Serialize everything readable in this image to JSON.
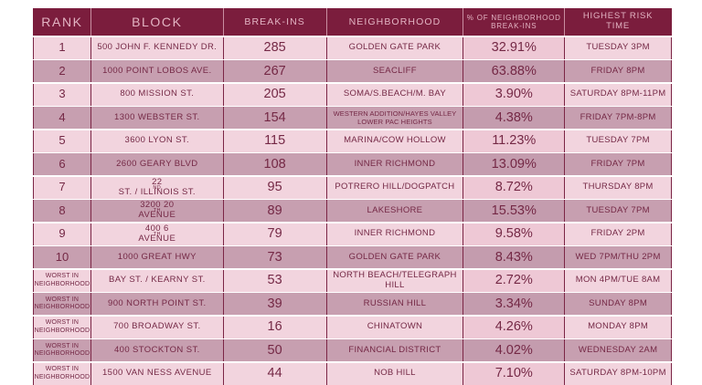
{
  "chart_data": {
    "type": "table",
    "title": "",
    "columns": [
      {
        "id": "rank",
        "label": "RANK"
      },
      {
        "id": "block",
        "label": "BLOCK"
      },
      {
        "id": "breakins",
        "label": "BREAK-INS"
      },
      {
        "id": "neighborhood",
        "label": "NEIGHBORHOOD"
      },
      {
        "id": "pct",
        "label": "% OF NEIGHBORHOOD\nBREAK-INS"
      },
      {
        "id": "time",
        "label": "HIGHEST RISK\nTIME"
      }
    ],
    "rows": [
      {
        "rank": "1",
        "block": "500 JOHN F. KENNEDY DR.",
        "breakins": "285",
        "neighborhood": "GOLDEN GATE PARK",
        "pct": "32.91%",
        "time": "TUESDAY 3PM"
      },
      {
        "rank": "2",
        "block": "1000 POINT LOBOS AVE.",
        "breakins": "267",
        "neighborhood": "SEACLIFF",
        "pct": "63.88%",
        "time": "FRIDAY 8PM"
      },
      {
        "rank": "3",
        "block": "800 MISSION ST.",
        "breakins": "205",
        "neighborhood": "SOMA/S.BEACH/M. BAY",
        "pct": "3.90%",
        "time": "SATURDAY 8PM-11PM"
      },
      {
        "rank": "4",
        "block": "1300 WEBSTER ST.",
        "breakins": "154",
        "neighborhood": "WESTERN ADDITION/HAYES VALLEY\nLOWER PAC HEIGHTS",
        "pct": "4.38%",
        "time": "FRIDAY 7PM-8PM"
      },
      {
        "rank": "5",
        "block": "3600 LYON ST.",
        "breakins": "115",
        "neighborhood": "MARINA/COW HOLLOW",
        "pct": "11.23%",
        "time": "TUESDAY 7PM"
      },
      {
        "rank": "6",
        "block": "2600 GEARY BLVD",
        "breakins": "108",
        "neighborhood": "INNER RICHMOND",
        "pct": "13.09%",
        "time": "FRIDAY 7PM"
      },
      {
        "rank": "7",
        "block": "22^{ND} ST. / ILLINOIS ST.",
        "breakins": "95",
        "neighborhood": "POTRERO HILL/DOGPATCH",
        "pct": "8.72%",
        "time": "THURSDAY 8PM"
      },
      {
        "rank": "8",
        "block": "3200 20^{TH} AVENUE",
        "breakins": "89",
        "neighborhood": "LAKESHORE",
        "pct": "15.53%",
        "time": "TUESDAY 7PM"
      },
      {
        "rank": "9",
        "block": "400 6^{TH} AVENUE",
        "breakins": "79",
        "neighborhood": "INNER RICHMOND",
        "pct": "9.58%",
        "time": "FRIDAY 2PM"
      },
      {
        "rank": "10",
        "block": "1000 GREAT HWY",
        "breakins": "73",
        "neighborhood": "GOLDEN GATE PARK",
        "pct": "8.43%",
        "time": "WED 7PM/THU 2PM"
      },
      {
        "rank": "WORST IN\nNEIGHBORHOOD",
        "block": "BAY ST. / KEARNY ST.",
        "breakins": "53",
        "neighborhood": "NORTH BEACH/TELEGRAPH HILL",
        "pct": "2.72%",
        "time": "MON 4PM/TUE 8AM"
      },
      {
        "rank": "WORST IN\nNEIGHBORHOOD",
        "block": "900 NORTH POINT ST.",
        "breakins": "39",
        "neighborhood": "RUSSIAN HILL",
        "pct": "3.34%",
        "time": "SUNDAY 8PM"
      },
      {
        "rank": "WORST IN\nNEIGHBORHOOD",
        "block": "700 BROADWAY ST.",
        "breakins": "16",
        "neighborhood": "CHINATOWN",
        "pct": "4.26%",
        "time": "MONDAY 8PM"
      },
      {
        "rank": "WORST IN\nNEIGHBORHOOD",
        "block": "400 STOCKTON ST.",
        "breakins": "50",
        "neighborhood": "FINANCIAL DISTRICT",
        "pct": "4.02%",
        "time": "WEDNESDAY 2AM"
      },
      {
        "rank": "WORST IN\nNEIGHBORHOOD",
        "block": "1500 VAN NESS AVENUE",
        "breakins": "44",
        "neighborhood": "NOB HILL",
        "pct": "7.10%",
        "time": "SATURDAY 8PM-10PM"
      }
    ]
  },
  "colors": {
    "header_bg": "#7b1d3d",
    "header_text": "#e3b4c3",
    "row_light": "#f2d4de",
    "row_dark": "#c79fb0",
    "pct_col_light": "#eec8d5",
    "pct_col_dark": "#c49cae",
    "body_text": "#742845",
    "grid_line": "#7b2545",
    "page_bg": "#ffffff"
  }
}
